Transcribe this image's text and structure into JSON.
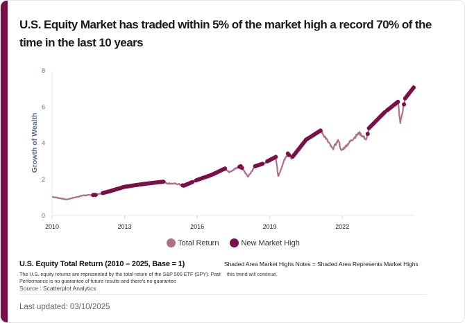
{
  "title": "U.S. Equity Market has traded within 5% of the market high a record 70% of the time in the last 10 years",
  "colors": {
    "accent": "#7a1046",
    "total_return": "#b07088",
    "new_high": "#7a1046",
    "axis_text": "#5a6a85"
  },
  "chart_data": {
    "type": "line",
    "ylabel": "Growth of Wealth",
    "xlabel": "",
    "xlim": [
      2010,
      2025
    ],
    "ylim": [
      0,
      8
    ],
    "xticks": [
      "2010",
      "2013",
      "2016",
      "2019",
      "2022"
    ],
    "xtick_values": [
      2010,
      2013,
      2016,
      2019,
      2022
    ],
    "yticks": [
      "0",
      "2",
      "4",
      "6",
      "8"
    ],
    "ytick_values": [
      0,
      2,
      4,
      6,
      8
    ],
    "grid": false,
    "legend_position": "bottom-center",
    "series": [
      {
        "name": "Total Return",
        "type": "line",
        "x": [
          2010,
          2010.6,
          2011.3,
          2011.8,
          2012.4,
          2013,
          2013.8,
          2014.65,
          2014.75,
          2015.2,
          2015.45,
          2016,
          2016.6,
          2017.15,
          2017.3,
          2017.8,
          2018.1,
          2018.4,
          2018.7,
          2019.25,
          2019.35,
          2019.6,
          2019.75,
          2019.9,
          2020.5,
          2021.1,
          2021.3,
          2021.6,
          2021.85,
          2021.95,
          2022.3,
          2022.7,
          2023,
          2023.1,
          2023.75,
          2024.3,
          2024.4,
          2024.6,
          2024.97
        ],
        "y": [
          1.04,
          0.89,
          1.12,
          1.14,
          1.35,
          1.59,
          1.75,
          1.88,
          1.78,
          1.75,
          1.65,
          1.97,
          2.25,
          2.6,
          2.41,
          2.73,
          2.16,
          2.73,
          2.86,
          3.24,
          2.16,
          3.05,
          3.43,
          3.17,
          4.19,
          4.7,
          4.32,
          3.68,
          4.19,
          3.56,
          4.06,
          4.57,
          4.19,
          4.83,
          5.71,
          6.29,
          5.14,
          6.48,
          7.11
        ]
      },
      {
        "name": "New Market High",
        "type": "scatter",
        "ranges": [
          [
            2011.7,
            2011.8
          ],
          [
            2012.1,
            2014.6
          ],
          [
            2015.4,
            2015.8
          ],
          [
            2015.95,
            2017.15
          ],
          [
            2017.75,
            2017.85
          ],
          [
            2018.4,
            2018.7
          ],
          [
            2018.9,
            2019.25
          ],
          [
            2019.75,
            2019.8
          ],
          [
            2019.95,
            2021.1
          ],
          [
            2023.05,
            2023.75
          ],
          [
            2023.85,
            2024.3
          ],
          [
            2024.55,
            2024.97
          ]
        ]
      }
    ]
  },
  "legend": {
    "total_return": "Total Return",
    "new_high": "New Market High"
  },
  "footer": {
    "title": "U.S. Equity Total Return (2010 – 2025, Base = 1)",
    "description": "The U.S. equity returns are represented by the total return of the S&P 500 ETF (SPY). Past Performance is no guarantee of future results and there's no guarantee",
    "source": "Source : Scatterplot Analytics",
    "note": "Shaded Area Market Highs Notes = Shaded Area Represents Market Highs",
    "note_continued": "this trend will continue.",
    "last_updated": "Last updated: 03/10/2025"
  }
}
